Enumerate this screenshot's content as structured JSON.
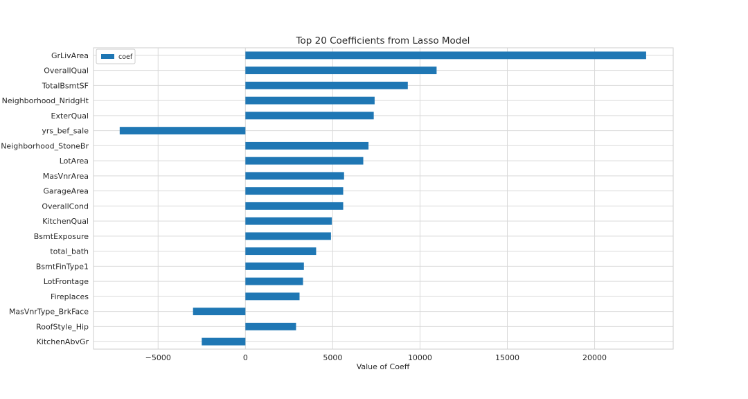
{
  "chart_data": {
    "type": "bar",
    "orientation": "horizontal",
    "title": "Top 20 Coefficients from Lasso Model",
    "xlabel": "Value of Coeff",
    "ylabel": "",
    "xlim": [
      -8700,
      24500
    ],
    "xticks": [
      -5000,
      0,
      5000,
      10000,
      15000,
      20000
    ],
    "xtick_labels": [
      "−5000",
      "0",
      "5000",
      "10000",
      "15000",
      "20000"
    ],
    "grid": true,
    "legend": {
      "position": "top-left",
      "entries": [
        "coef"
      ]
    },
    "categories": [
      "GrLivArea",
      "OverallQual",
      "TotalBsmtSF",
      "Neighborhood_NridgHt",
      "ExterQual",
      "yrs_bef_sale",
      "Neighborhood_StoneBr",
      "LotArea",
      "MasVnrArea",
      "GarageArea",
      "OverallCond",
      "KitchenQual",
      "BsmtExposure",
      "total_bath",
      "BsmtFinType1",
      "LotFrontage",
      "Fireplaces",
      "MasVnrType_BrkFace",
      "RoofStyle_Hip",
      "KitchenAbvGr"
    ],
    "series": [
      {
        "name": "coef",
        "color": "#1f77b4",
        "values": [
          22950,
          10950,
          9300,
          7400,
          7350,
          -7200,
          7050,
          6750,
          5650,
          5600,
          5600,
          4950,
          4900,
          4050,
          3350,
          3300,
          3100,
          -3000,
          2900,
          -2500
        ]
      }
    ]
  }
}
